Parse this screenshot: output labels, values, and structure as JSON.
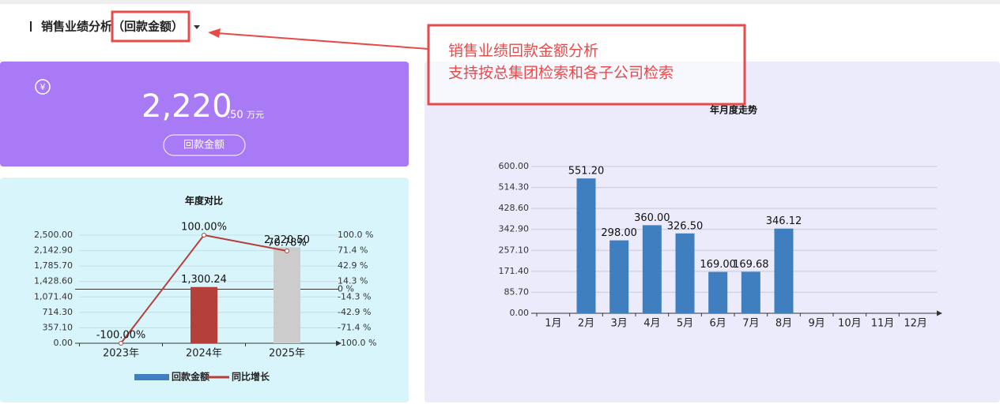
{
  "header": {
    "title": "销售业绩分析",
    "subtitle": "（回款金额）"
  },
  "annotation": {
    "lines": [
      "销售业绩回款金额分析",
      "支持按总集团检索和各子公司检索"
    ]
  },
  "summary": {
    "value_main": "2,220",
    "value_decimal": ".50",
    "unit": "万元",
    "button": "回款金额"
  },
  "chart_data": [
    {
      "type": "combo",
      "title": "年度对比",
      "categories": [
        "2023年",
        "2024年",
        "2025年"
      ],
      "series": [
        {
          "name": "回款金额",
          "type": "bar",
          "color": "#3f7fc0",
          "bar_colors": [
            "#3f7fc0",
            "#b5403a",
            "#cccccc"
          ],
          "values": [
            null,
            1300.24,
            2220.5
          ],
          "value_labels": [
            null,
            "1,300.24",
            "2,220.50"
          ]
        },
        {
          "name": "同比增长",
          "type": "line",
          "axis": "y2",
          "color": "#b5403a",
          "values": [
            -100,
            100,
            70.78
          ],
          "value_labels": [
            "-100.00%",
            "100.00%",
            "70.78%"
          ]
        }
      ],
      "ylim": [
        0,
        2500
      ],
      "yticks": [
        {
          "value": 0,
          "label": "0.00"
        },
        {
          "value": 357.1,
          "label": "357.10"
        },
        {
          "value": 714.3,
          "label": "714.30"
        },
        {
          "value": 1071.4,
          "label": "1,071.40"
        },
        {
          "value": 1428.6,
          "label": "1,428.60"
        },
        {
          "value": 1785.7,
          "label": "1,785.70"
        },
        {
          "value": 2142.9,
          "label": "2,142.90"
        },
        {
          "value": 2500,
          "label": "2,500.00"
        }
      ],
      "y2lim": [
        -100,
        100
      ],
      "y2ticks": [
        {
          "value": -100,
          "label": "-100.0 %"
        },
        {
          "value": -71.4,
          "label": "-71.4 %"
        },
        {
          "value": -42.9,
          "label": "-42.9 %"
        },
        {
          "value": -14.3,
          "label": "-14.3 %"
        },
        {
          "value": 0,
          "label": "0 %"
        },
        {
          "value": 14.3,
          "label": "14.3 %"
        },
        {
          "value": 42.9,
          "label": "42.9 %"
        },
        {
          "value": 71.4,
          "label": "71.4 %"
        },
        {
          "value": 100,
          "label": "100.0 %"
        }
      ],
      "grid": true,
      "zero_line": true,
      "legend": "bottom"
    },
    {
      "type": "bar",
      "title": "年月度走势",
      "categories": [
        "1月",
        "2月",
        "3月",
        "4月",
        "5月",
        "6月",
        "7月",
        "8月",
        "9月",
        "10月",
        "11月",
        "12月"
      ],
      "series": [
        {
          "color": "#3f7fc0",
          "values": [
            null,
            551.2,
            298.0,
            360.0,
            326.5,
            169.0,
            169.68,
            346.12,
            null,
            null,
            null,
            null
          ],
          "value_labels": [
            null,
            "551.20",
            "298.00",
            "360.00",
            "326.50",
            "169.00",
            "169.68",
            "346.12",
            null,
            null,
            null,
            null
          ]
        }
      ],
      "ylim": [
        0,
        600
      ],
      "yticks": [
        {
          "value": 0,
          "label": "0.00"
        },
        {
          "value": 85.7,
          "label": "85.70"
        },
        {
          "value": 171.4,
          "label": "171.40"
        },
        {
          "value": 257.1,
          "label": "257.10"
        },
        {
          "value": 342.9,
          "label": "342.90"
        },
        {
          "value": 428.6,
          "label": "428.60"
        },
        {
          "value": 514.3,
          "label": "514.30"
        },
        {
          "value": 600,
          "label": "600.00"
        }
      ],
      "grid": true
    }
  ]
}
